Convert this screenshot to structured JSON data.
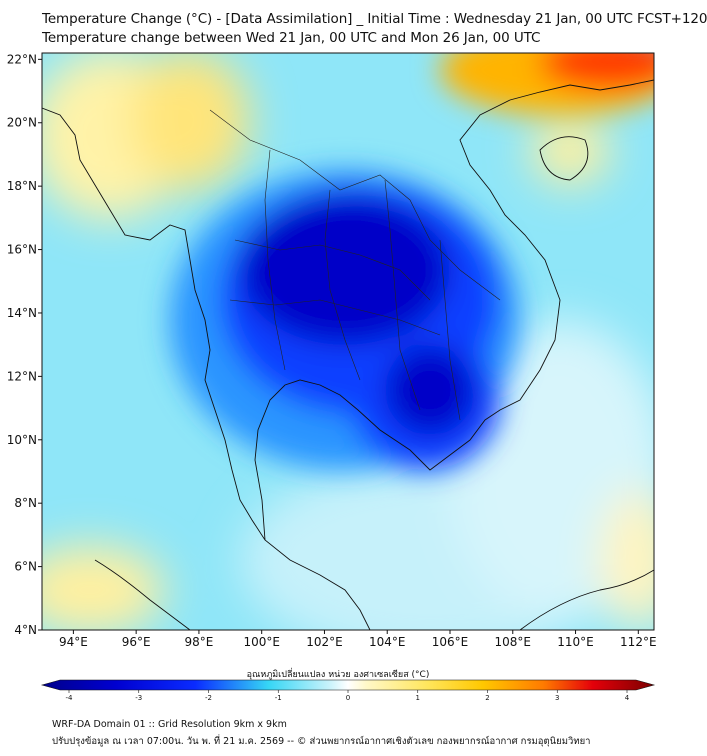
{
  "title": {
    "line1": "Temperature Change (°C) - [Data Assimilation] _ Initial Time : Wednesday 21 Jan, 00 UTC FCST+120",
    "line2": "Temperature change between Wed 21 Jan, 00 UTC and Mon 26 Jan, 00 UTC"
  },
  "map": {
    "lat_ticks": [
      {
        "lat": 22,
        "label": "22°N"
      },
      {
        "lat": 20,
        "label": "20°N"
      },
      {
        "lat": 18,
        "label": "18°N"
      },
      {
        "lat": 16,
        "label": "16°N"
      },
      {
        "lat": 14,
        "label": "14°N"
      },
      {
        "lat": 12,
        "label": "12°N"
      },
      {
        "lat": 10,
        "label": "10°N"
      },
      {
        "lat": 8,
        "label": "8°N"
      },
      {
        "lat": 6,
        "label": "6°N"
      },
      {
        "lat": 4,
        "label": "4°N"
      }
    ],
    "lon_ticks": [
      {
        "lon": 94,
        "label": "94°E"
      },
      {
        "lon": 96,
        "label": "96°E"
      },
      {
        "lon": 98,
        "label": "98°E"
      },
      {
        "lon": 100,
        "label": "100°E"
      },
      {
        "lon": 102,
        "label": "102°E"
      },
      {
        "lon": 104,
        "label": "104°E"
      },
      {
        "lon": 106,
        "label": "106°E"
      },
      {
        "lon": 108,
        "label": "108°E"
      },
      {
        "lon": 110,
        "label": "110°E"
      },
      {
        "lon": 112,
        "label": "112°E"
      }
    ],
    "lat_range": [
      4,
      22.2
    ],
    "lon_range": [
      93,
      112.5
    ],
    "field_regions": [
      {
        "name": "strong-cooling-core",
        "lon": 102.8,
        "lat": 14.6,
        "value": -3.8
      },
      {
        "name": "cambodia-cooling",
        "lon": 105.2,
        "lat": 12.2,
        "value": -3.6
      },
      {
        "name": "north-warming",
        "lon": 110.5,
        "lat": 21.8,
        "value": 3.2
      },
      {
        "name": "myanmar-warming",
        "lon": 96.5,
        "lat": 19.5,
        "value": 0.6
      },
      {
        "name": "andaman-warming",
        "lon": 94.5,
        "lat": 5.5,
        "value": 0.6
      },
      {
        "name": "east-warming",
        "lon": 111.5,
        "lat": 6.5,
        "value": 0.5
      }
    ]
  },
  "colorbar": {
    "title": "อุณหภูมิเปลี่ยนแปลง หน่วย องศาเซลเซียส (°C)",
    "min": -4,
    "max": 4,
    "tick_labels": [
      "-4",
      "-3",
      "-2",
      "-1",
      "0",
      "1",
      "2",
      "3",
      "4"
    ],
    "colors": {
      "deep_blue": "#00008b",
      "blue": "#0a2bff",
      "light_blue": "#36d6f5",
      "near_zero": "#ffffff",
      "yellow": "#ffd900",
      "red": "#e4000a",
      "dark_red": "#7a0000"
    }
  },
  "footer": {
    "line1": "WRF-DA Domain 01 :: Grid Resolution 9km x 9km",
    "line2": "ปรับปรุงข้อมูล ณ เวลา 07:00น. วัน พ. ที่ 21 ม.ค. 2569 -- © ส่วนพยากรณ์อากาศเชิงตัวเลข กองพยากรณ์อากาศ กรมอุตุนิยมวิทยา"
  }
}
